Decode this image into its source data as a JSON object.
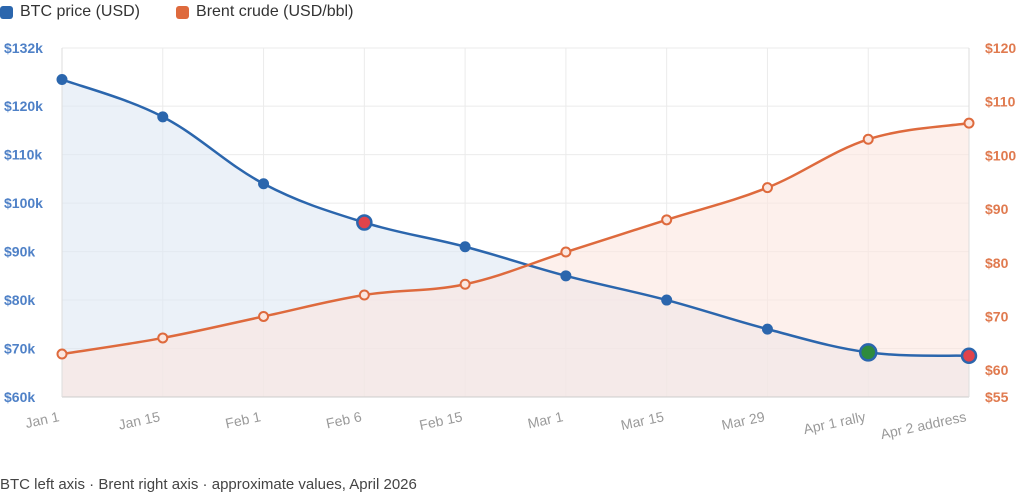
{
  "legend": {
    "btc_label": "BTC price (USD)",
    "brent_label": "Brent crude (USD/bbl)"
  },
  "caption": "BTC left axis · Brent right axis · approximate values, April 2026",
  "colors": {
    "btc": "#2b66ad",
    "brent": "#de6a3d",
    "btc_fill": "#dde7f3",
    "brent_fill": "#fbe6df",
    "left_axis_text": "#4f81c7",
    "right_axis_text": "#e07a4f",
    "highlight_red": "#e0434b",
    "highlight_green": "#2e8b3e"
  },
  "chart_data": {
    "type": "line",
    "categories": [
      "Jan 1",
      "Jan 15",
      "Feb 1",
      "Feb 6",
      "Feb 15",
      "Mar 1",
      "Mar 15",
      "Mar 29",
      "Apr 1 rally",
      "Apr 2 address"
    ],
    "series": [
      {
        "name": "BTC price (USD)",
        "axis": "left",
        "values": [
          125500,
          117800,
          104000,
          96000,
          91000,
          85000,
          80000,
          74000,
          69200,
          68500
        ],
        "highlights": {
          "3": "red",
          "8": "green",
          "9": "red"
        }
      },
      {
        "name": "Brent crude (USD/bbl)",
        "axis": "right",
        "values": [
          63,
          66,
          70,
          74,
          76,
          82,
          88,
          94,
          103,
          106
        ]
      }
    ],
    "left_axis": {
      "ylim": [
        60000,
        132000
      ],
      "ticks": [
        60000,
        70000,
        80000,
        90000,
        100000,
        110000,
        120000,
        132000
      ],
      "tick_labels": [
        "$60k",
        "$70k",
        "$80k",
        "$90k",
        "$100k",
        "$110k",
        "$120k",
        "$132k"
      ]
    },
    "right_axis": {
      "ylim": [
        55,
        120
      ],
      "ticks": [
        55,
        60,
        70,
        80,
        90,
        100,
        110,
        120
      ],
      "tick_labels": [
        "$55",
        "$60",
        "$70",
        "$80",
        "$90",
        "$100",
        "$110",
        "$120"
      ]
    },
    "grid": true,
    "legend_position": "top-left",
    "title": "",
    "xlabel": "",
    "ylabel": ""
  }
}
